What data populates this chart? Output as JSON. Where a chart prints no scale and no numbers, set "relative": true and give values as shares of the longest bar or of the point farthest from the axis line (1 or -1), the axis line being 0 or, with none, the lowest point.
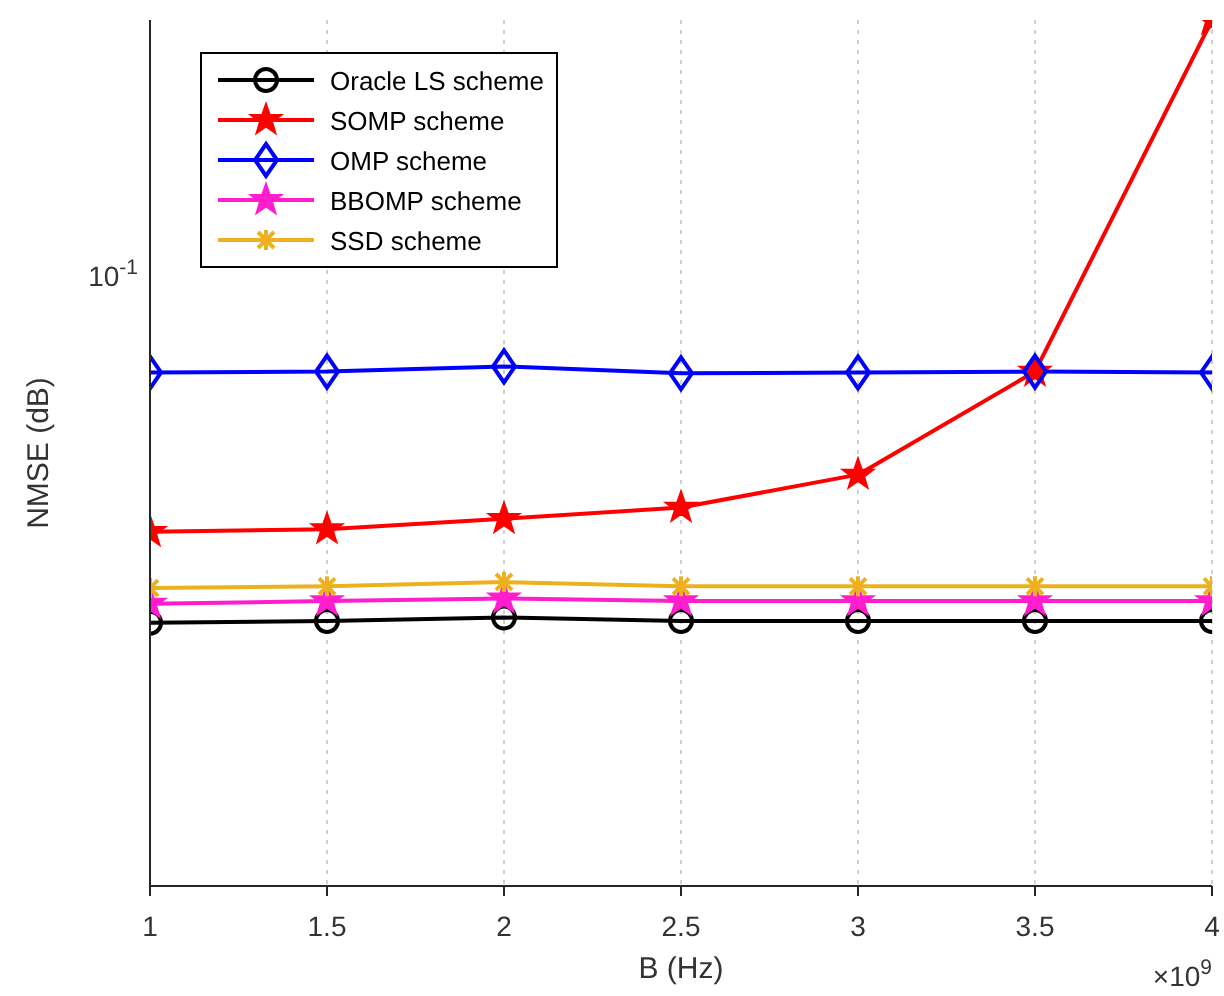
{
  "chart_data": {
    "type": "line",
    "relative": true,
    "xlabel": "B (Hz)",
    "ylabel": "NMSE (dB)",
    "x": [
      1,
      1.5,
      2,
      2.5,
      3,
      3.5,
      4
    ],
    "xlim": [
      1,
      4
    ],
    "xticks": [
      1,
      1.5,
      2,
      2.5,
      3,
      3.5,
      4
    ],
    "grid": "x",
    "legend": "top left",
    "line_style": "solid",
    "annotations": [
      "10$^{-1}$",
      "×10$^{9}$"
    ],
    "series": [
      {
        "name": "Oracle LS scheme",
        "color": "#000000",
        "marker": "circle",
        "values": [
          0.304,
          0.306,
          0.31,
          0.306,
          0.306,
          0.306,
          0.306
        ]
      },
      {
        "name": "SOMP scheme",
        "color": "#ff0000",
        "marker": "star",
        "values": [
          0.409,
          0.412,
          0.424,
          0.437,
          0.475,
          0.594,
          1
        ]
      },
      {
        "name": "OMP scheme",
        "color": "#0000ff",
        "marker": "diamond",
        "values": [
          0.593,
          0.594,
          0.6,
          0.592,
          0.593,
          0.594,
          0.593
        ]
      },
      {
        "name": "BBOMP scheme",
        "color": "#ff1dce",
        "marker": "star",
        "values": [
          0.326,
          0.329,
          0.332,
          0.329,
          0.329,
          0.329,
          0.329
        ]
      },
      {
        "name": "SSD scheme",
        "color": "#edb120",
        "marker": "cross",
        "values": [
          0.344,
          0.346,
          0.351,
          0.346,
          0.346,
          0.346,
          0.346
        ]
      }
    ]
  }
}
